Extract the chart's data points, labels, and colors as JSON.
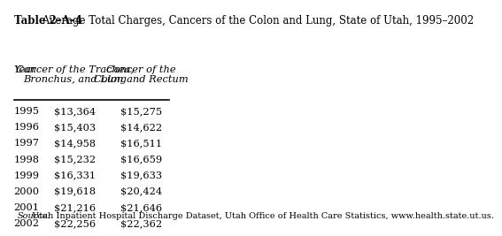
{
  "title_bold": "Table 2–A–4",
  "title_regular": " Average Total Charges, Cancers of the Colon and Lung, State of Utah, 1995–2002",
  "col_header_year": "Year",
  "col_header_lung": "Cancer of the Trachea,\nBronchus, and Lung",
  "col_header_colon": "Cancer of the\nColon and Rectum",
  "years": [
    "1995",
    "1996",
    "1997",
    "1998",
    "1999",
    "2000",
    "2001",
    "2002"
  ],
  "lung_values": [
    "$13,364",
    "$15,403",
    "$14,958",
    "$15,232",
    "$16,331",
    "$19,618",
    "$21,216",
    "$22,256"
  ],
  "colon_values": [
    "$15,275",
    "$14,622",
    "$16,511",
    "$16,659",
    "$19,633",
    "$20,424",
    "$21,646",
    "$22,362"
  ],
  "source_italic": "Source:",
  "source_regular": " Utah Inpatient Hospital Discharge Dataset, Utah Office of Health Care Statistics, www.health.state.ut.us.",
  "bg_color": "#ffffff",
  "text_color": "#000000",
  "line_color": "#000000",
  "title_fontsize": 8.5,
  "header_fontsize": 8.2,
  "data_fontsize": 8.2,
  "source_fontsize": 7.0
}
